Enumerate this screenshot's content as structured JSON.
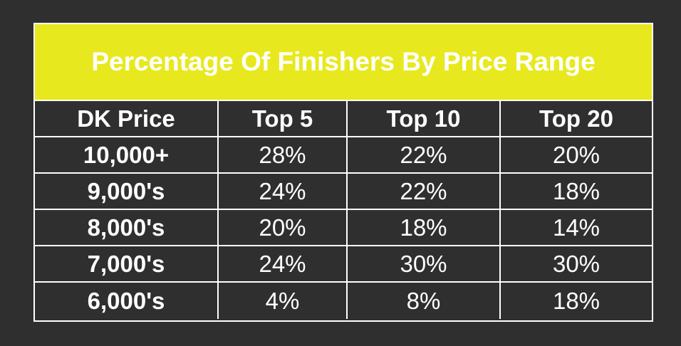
{
  "header": {
    "title": "Percentage Of Finishers By Price Range"
  },
  "table": {
    "columns": [
      "DK Price",
      "Top 5",
      "Top 10",
      "Top 20"
    ],
    "rows": [
      [
        "10,000+",
        "28%",
        "22%",
        "20%"
      ],
      [
        "9,000's",
        "24%",
        "22%",
        "18%"
      ],
      [
        "8,000's",
        "20%",
        "18%",
        "14%"
      ],
      [
        "7,000's",
        "24%",
        "30%",
        "30%"
      ],
      [
        "6,000's",
        "4%",
        "8%",
        "18%"
      ]
    ]
  }
}
